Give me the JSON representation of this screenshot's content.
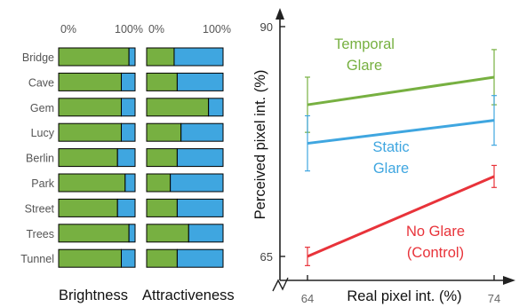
{
  "chart_data": [
    {
      "type": "bar",
      "subtype": "stacked-horizontal-100",
      "xlabel": "Brightness",
      "tick_labels": [
        "0%",
        "100%"
      ],
      "categories": [
        "Bridge",
        "Cave",
        "Gem",
        "Lucy",
        "Berlin",
        "Park",
        "Street",
        "Trees",
        "Tunnel"
      ],
      "series": [
        {
          "values": [
            92,
            82,
            82,
            82,
            77,
            87,
            77,
            92,
            82
          ],
          "color": "#77b041"
        },
        {
          "values": [
            8,
            18,
            18,
            18,
            23,
            13,
            23,
            8,
            18
          ],
          "color": "#3fa6e0"
        }
      ],
      "xlim": [
        0,
        100
      ]
    },
    {
      "type": "bar",
      "subtype": "stacked-horizontal-100",
      "xlabel": "Attractiveness",
      "tick_labels": [
        "0%",
        "100%"
      ],
      "categories": [
        "Bridge",
        "Cave",
        "Gem",
        "Lucy",
        "Berlin",
        "Park",
        "Street",
        "Trees",
        "Tunnel"
      ],
      "series": [
        {
          "values": [
            36,
            40,
            81,
            45,
            40,
            31,
            40,
            55,
            40
          ],
          "color": "#77b041"
        },
        {
          "values": [
            64,
            60,
            19,
            55,
            60,
            69,
            60,
            45,
            60
          ],
          "color": "#3fa6e0"
        }
      ],
      "xlim": [
        0,
        100
      ]
    },
    {
      "type": "line",
      "xlabel": "Real pixel int. (%)",
      "ylabel": "Perceived pixel int. (%)",
      "x": [
        64,
        74
      ],
      "x_ticks": [
        "64",
        "74"
      ],
      "y_ticks": [
        "65",
        "90"
      ],
      "ylim": [
        63.5,
        91.5
      ],
      "series": [
        {
          "name": "Temporal Glare",
          "values": [
            81.5,
            84.5
          ],
          "err": [
            [
              3.0,
              3.0
            ],
            [
              3.0,
              3.0
            ]
          ],
          "color": "#77b041"
        },
        {
          "name": "Static Glare",
          "values": [
            77.3,
            79.8
          ],
          "err": [
            [
              3.0,
              3.0
            ],
            [
              2.7,
              2.7
            ]
          ],
          "color": "#3fa6e0"
        },
        {
          "name": "No Glare (Control)",
          "values": [
            65.0,
            73.7
          ],
          "err": [
            [
              1.0,
              1.0
            ],
            [
              1.2,
              1.2
            ]
          ],
          "color": "#e8333a"
        }
      ],
      "annotations": [
        {
          "series": 0,
          "lines": [
            "Temporal",
            "Glare"
          ]
        },
        {
          "series": 1,
          "lines": [
            "Static",
            "Glare"
          ]
        },
        {
          "series": 2,
          "lines": [
            "No Glare",
            "(Control)"
          ]
        }
      ]
    }
  ]
}
